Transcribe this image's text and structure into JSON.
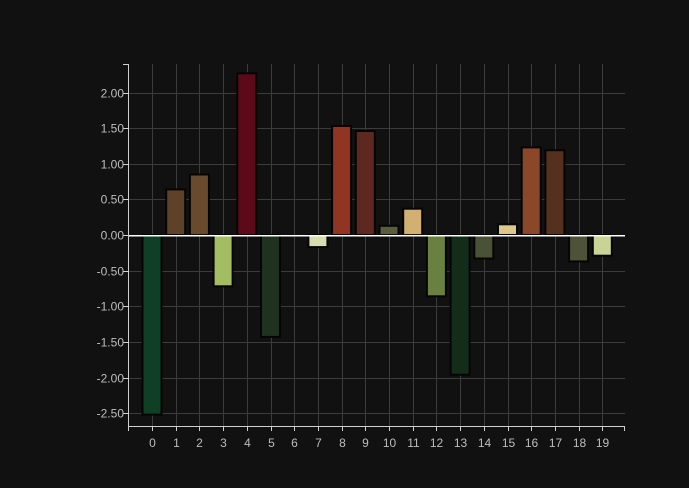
{
  "chart_data": {
    "type": "bar",
    "categories": [
      "0",
      "1",
      "2",
      "3",
      "4",
      "5",
      "6",
      "7",
      "8",
      "9",
      "10",
      "11",
      "12",
      "13",
      "14",
      "15",
      "16",
      "17",
      "18",
      "19"
    ],
    "values": [
      -2.52,
      0.64,
      0.85,
      -0.72,
      2.27,
      -1.43,
      0.0,
      -0.17,
      1.53,
      1.46,
      0.13,
      0.37,
      -0.86,
      -1.96,
      -0.33,
      0.15,
      1.23,
      1.19,
      -0.37,
      -0.29
    ],
    "colors": [
      "#0f3f24",
      "#5e4129",
      "#6a4a2d",
      "#a4bc62",
      "#5c0a19",
      "#1f3220",
      "#111111",
      "#d8ddb0",
      "#903524",
      "#5e2820",
      "#5c5b40",
      "#d2b072",
      "#6a8040",
      "#142c1a",
      "#4a5236",
      "#dcc88a",
      "#8b4828",
      "#55301e",
      "#4e5238",
      "#c9d396"
    ],
    "ylim": [
      -2.68,
      2.4
    ],
    "yticks": [
      -2.5,
      -2.0,
      -1.5,
      -1.0,
      -0.5,
      0.0,
      0.5,
      1.0,
      1.5,
      2.0
    ],
    "ytick_labels": [
      "-2.50",
      "-2.00",
      "-1.50",
      "-1.00",
      "-0.50",
      "0.00",
      "0.50",
      "1.00",
      "1.50",
      "2.00"
    ],
    "grid": true,
    "title": "",
    "xlabel": "",
    "ylabel": ""
  }
}
